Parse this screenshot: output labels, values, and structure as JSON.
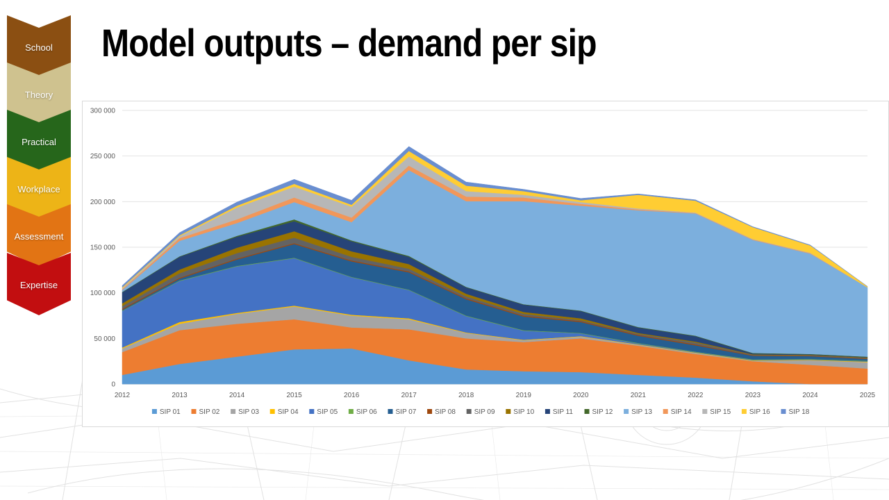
{
  "title": "Model outputs – demand per sip",
  "nav": {
    "items": [
      {
        "label": "School",
        "color": "#8B4F12"
      },
      {
        "label": "Theory",
        "color": "#CFC28F"
      },
      {
        "label": "Practical",
        "color": "#26661B"
      },
      {
        "label": "Workplace",
        "color": "#EDB417"
      },
      {
        "label": "Assessment",
        "color": "#E27414"
      },
      {
        "label": "Expertise",
        "color": "#C20E10"
      }
    ]
  },
  "chart_data": {
    "type": "area",
    "stacked": true,
    "x": [
      "2012",
      "2013",
      "2014",
      "2015",
      "2016",
      "2017",
      "2018",
      "2019",
      "2020",
      "2021",
      "2022",
      "2023",
      "2024",
      "2025"
    ],
    "ylim": [
      0,
      300000
    ],
    "yticks": [
      0,
      50000,
      100000,
      150000,
      200000,
      250000,
      300000
    ],
    "ytick_labels": [
      "0",
      "50 000",
      "100 000",
      "150 000",
      "200 000",
      "250 000",
      "300 000"
    ],
    "grid": true,
    "legend_position": "bottom",
    "series": [
      {
        "name": "SIP 01",
        "color": "#5B9BD5",
        "values": [
          10000,
          22000,
          30000,
          38000,
          39000,
          26000,
          16000,
          14000,
          13000,
          10000,
          7000,
          3000,
          0,
          0
        ]
      },
      {
        "name": "SIP 02",
        "color": "#ED7D31",
        "values": [
          25000,
          37000,
          36000,
          33000,
          23000,
          34000,
          34000,
          32000,
          37000,
          32000,
          26000,
          22000,
          21000,
          17000
        ]
      },
      {
        "name": "SIP 03",
        "color": "#A5A5A5",
        "values": [
          4000,
          7000,
          11000,
          14000,
          13000,
          11000,
          6000,
          2000,
          2000,
          1000,
          1000,
          500,
          5000,
          7000
        ]
      },
      {
        "name": "SIP 04",
        "color": "#FFC000",
        "values": [
          1000,
          2000,
          1000,
          1000,
          1000,
          1000,
          500,
          500,
          500,
          500,
          500,
          500,
          500,
          500
        ]
      },
      {
        "name": "SIP 05",
        "color": "#4472C4",
        "values": [
          40000,
          45000,
          51000,
          52000,
          41000,
          31000,
          18000,
          10000,
          3000,
          1000,
          500,
          500,
          500,
          500
        ]
      },
      {
        "name": "SIP 06",
        "color": "#70AD47",
        "values": [
          500,
          500,
          500,
          500,
          500,
          500,
          500,
          500,
          500,
          500,
          500,
          500,
          500,
          500
        ]
      },
      {
        "name": "SIP 07",
        "color": "#255E91",
        "values": [
          1000,
          2000,
          7000,
          15000,
          17000,
          19000,
          18000,
          15000,
          12000,
          8000,
          7000,
          4000,
          3000,
          2000
        ]
      },
      {
        "name": "SIP 08",
        "color": "#9E480E",
        "values": [
          1000,
          1000,
          1000,
          1000,
          1000,
          1000,
          1000,
          1000,
          1000,
          1000,
          1000,
          500,
          500,
          500
        ]
      },
      {
        "name": "SIP 09",
        "color": "#636363",
        "values": [
          3000,
          5000,
          6000,
          6000,
          4000,
          3000,
          2000,
          2000,
          1000,
          1000,
          2000,
          500,
          500,
          500
        ]
      },
      {
        "name": "SIP 10",
        "color": "#997300",
        "values": [
          3000,
          4000,
          6000,
          7000,
          6000,
          5000,
          3000,
          2000,
          2000,
          1000,
          1000,
          500,
          500,
          500
        ]
      },
      {
        "name": "SIP 11",
        "color": "#264478",
        "values": [
          12000,
          14000,
          12000,
          11000,
          11000,
          8000,
          7000,
          8000,
          8000,
          6000,
          6000,
          1000,
          500,
          500
        ]
      },
      {
        "name": "SIP 12",
        "color": "#43682B",
        "values": [
          500,
          500,
          1000,
          2000,
          1000,
          1000,
          500,
          500,
          500,
          500,
          500,
          500,
          500,
          500
        ]
      },
      {
        "name": "SIP 13",
        "color": "#7CAFDD",
        "values": [
          2000,
          17000,
          14000,
          19000,
          20000,
          94000,
          94000,
          113000,
          115000,
          128000,
          134000,
          124000,
          110000,
          76000
        ]
      },
      {
        "name": "SIP 14",
        "color": "#F1975A",
        "values": [
          1000,
          3000,
          4000,
          5000,
          5000,
          5000,
          5000,
          4000,
          2000,
          1000,
          500,
          500,
          500,
          0
        ]
      },
      {
        "name": "SIP 15",
        "color": "#B7B7B7",
        "values": [
          1000,
          2000,
          13000,
          12000,
          12000,
          10000,
          6000,
          3000,
          2000,
          1000,
          500,
          500,
          500,
          0
        ]
      },
      {
        "name": "SIP 16",
        "color": "#FFCD33",
        "values": [
          1000,
          1000,
          2000,
          3000,
          2000,
          6000,
          6000,
          4000,
          2000,
          15000,
          13000,
          13000,
          8000,
          1000
        ]
      },
      {
        "name": "SIP 18",
        "color": "#698ED0",
        "values": [
          2000,
          3000,
          4000,
          5000,
          5000,
          5000,
          4000,
          2000,
          2000,
          1000,
          1000,
          500,
          500,
          0
        ]
      }
    ]
  }
}
